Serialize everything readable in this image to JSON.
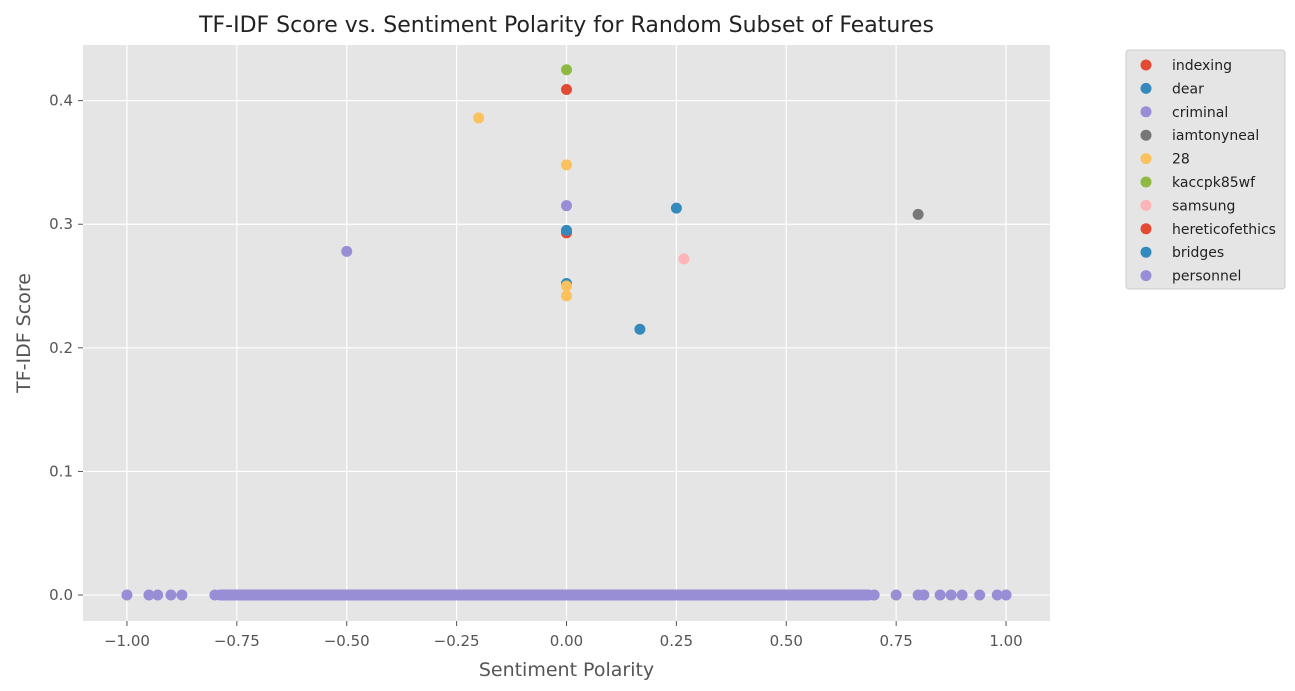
{
  "chart_data": {
    "type": "scatter",
    "title": "TF-IDF Score vs. Sentiment Polarity for Random Subset of Features",
    "xlabel": "Sentiment Polarity",
    "ylabel": "TF-IDF Score",
    "xlim": [
      -1.1,
      1.1
    ],
    "ylim": [
      -0.021,
      0.445
    ],
    "grid": true,
    "legend_position": "outside-right",
    "x_ticks": [
      {
        "value": -1.0,
        "label": "−1.00"
      },
      {
        "value": -0.75,
        "label": "−0.75"
      },
      {
        "value": -0.5,
        "label": "−0.50"
      },
      {
        "value": -0.25,
        "label": "−0.25"
      },
      {
        "value": 0.0,
        "label": "0.00"
      },
      {
        "value": 0.25,
        "label": "0.25"
      },
      {
        "value": 0.5,
        "label": "0.50"
      },
      {
        "value": 0.75,
        "label": "0.75"
      },
      {
        "value": 1.0,
        "label": "1.00"
      }
    ],
    "y_ticks": [
      {
        "value": 0.0,
        "label": "0.0"
      },
      {
        "value": 0.1,
        "label": "0.1"
      },
      {
        "value": 0.2,
        "label": "0.2"
      },
      {
        "value": 0.3,
        "label": "0.3"
      },
      {
        "value": 0.4,
        "label": "0.4"
      }
    ],
    "series": [
      {
        "name": "indexing",
        "color": "#E24A33",
        "points": [
          [
            0.0,
            0.409
          ],
          [
            0.0,
            0.293
          ]
        ]
      },
      {
        "name": "dear",
        "color": "#348ABD",
        "points": [
          [
            0.0,
            0.295
          ],
          [
            0.25,
            0.313
          ],
          [
            0.167,
            0.215
          ],
          [
            0.0,
            0.252
          ]
        ]
      },
      {
        "name": "criminal",
        "color": "#988ED5",
        "points": [
          [
            0.0,
            0.315
          ],
          [
            -0.5,
            0.278
          ]
        ]
      },
      {
        "name": "iamtonyneal",
        "color": "#777777",
        "points": [
          [
            0.8,
            0.308
          ]
        ]
      },
      {
        "name": "28",
        "color": "#FBC15E",
        "points": [
          [
            -0.2,
            0.386
          ],
          [
            0.0,
            0.348
          ],
          [
            0.0,
            0.25
          ],
          [
            0.0,
            0.242
          ]
        ]
      },
      {
        "name": "kaccpk85wf",
        "color": "#8EBA42",
        "points": [
          [
            0.0,
            0.425
          ]
        ]
      },
      {
        "name": "samsung",
        "color": "#FFB5B8",
        "points": [
          [
            0.267,
            0.272
          ]
        ]
      },
      {
        "name": "hereticofethics",
        "color": "#E24A33",
        "points": []
      },
      {
        "name": "bridges",
        "color": "#348ABD",
        "points": []
      },
      {
        "name": "personnel",
        "color": "#988ED5",
        "points": []
      }
    ],
    "baseline": {
      "color": "#988ED5",
      "y": 0.0,
      "x_values": [
        -1.0,
        -0.95,
        -0.93,
        -0.9,
        -0.875,
        -0.8,
        -0.78,
        -0.75,
        -0.714,
        -0.7,
        -0.675,
        -0.65,
        -0.625,
        -0.6,
        -0.575,
        -0.55,
        -0.525,
        -0.5,
        -0.475,
        -0.45,
        -0.425,
        -0.4,
        -0.375,
        -0.35,
        -0.325,
        -0.3,
        -0.275,
        -0.25,
        -0.225,
        -0.2,
        -0.175,
        -0.15,
        -0.125,
        -0.1,
        -0.075,
        -0.05,
        -0.025,
        0.0,
        0.025,
        0.05,
        0.075,
        0.1,
        0.125,
        0.15,
        0.175,
        0.2,
        0.225,
        0.25,
        0.275,
        0.3,
        0.325,
        0.35,
        0.375,
        0.4,
        0.425,
        0.45,
        0.475,
        0.5,
        0.525,
        0.55,
        0.575,
        0.6,
        0.625,
        0.65,
        0.675,
        0.7,
        0.75,
        0.8,
        0.813,
        0.85,
        0.875,
        0.9,
        0.94,
        0.98,
        1.0
      ]
    }
  }
}
